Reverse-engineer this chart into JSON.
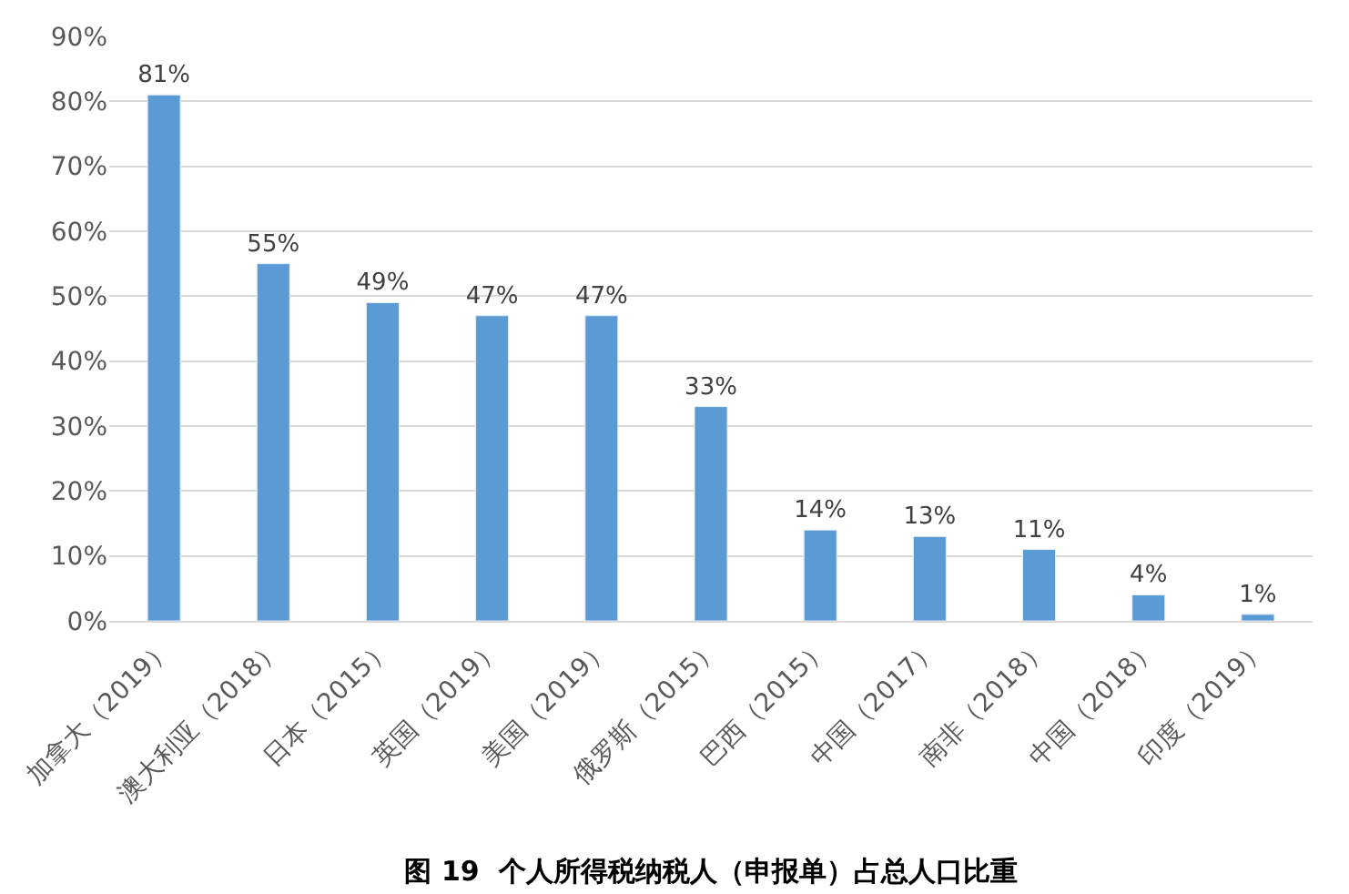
{
  "chart_data": {
    "type": "bar",
    "title": "图 19  个人所得税纳税人（申报单）占总人口比重",
    "categories": [
      "加拿大（2019）",
      "澳大利亚（2018）",
      "日本（2015）",
      "英国（2019）",
      "美国（2019）",
      "俄罗斯（2015）",
      "巴西（2015）",
      "中国（2017）",
      "南非（2018）",
      "中国（2018）",
      "印度（2019）"
    ],
    "values": [
      81,
      55,
      49,
      47,
      47,
      33,
      14,
      13,
      11,
      4,
      1
    ],
    "value_labels": [
      "81%",
      "55%",
      "49%",
      "47%",
      "47%",
      "33%",
      "14%",
      "13%",
      "11%",
      "4%",
      "1%"
    ],
    "color": "#5b9bd5",
    "ylim": [
      0,
      90
    ],
    "yticks": [
      {
        "value": 0,
        "label": "0%"
      },
      {
        "value": 10,
        "label": "10%"
      },
      {
        "value": 20,
        "label": "20%"
      },
      {
        "value": 30,
        "label": "30%"
      },
      {
        "value": 40,
        "label": "40%"
      },
      {
        "value": 50,
        "label": "50%"
      },
      {
        "value": 60,
        "label": "60%"
      },
      {
        "value": 70,
        "label": "70%"
      },
      {
        "value": 80,
        "label": "80%"
      },
      {
        "value": 90,
        "label": "90%"
      }
    ],
    "grid": "y"
  }
}
